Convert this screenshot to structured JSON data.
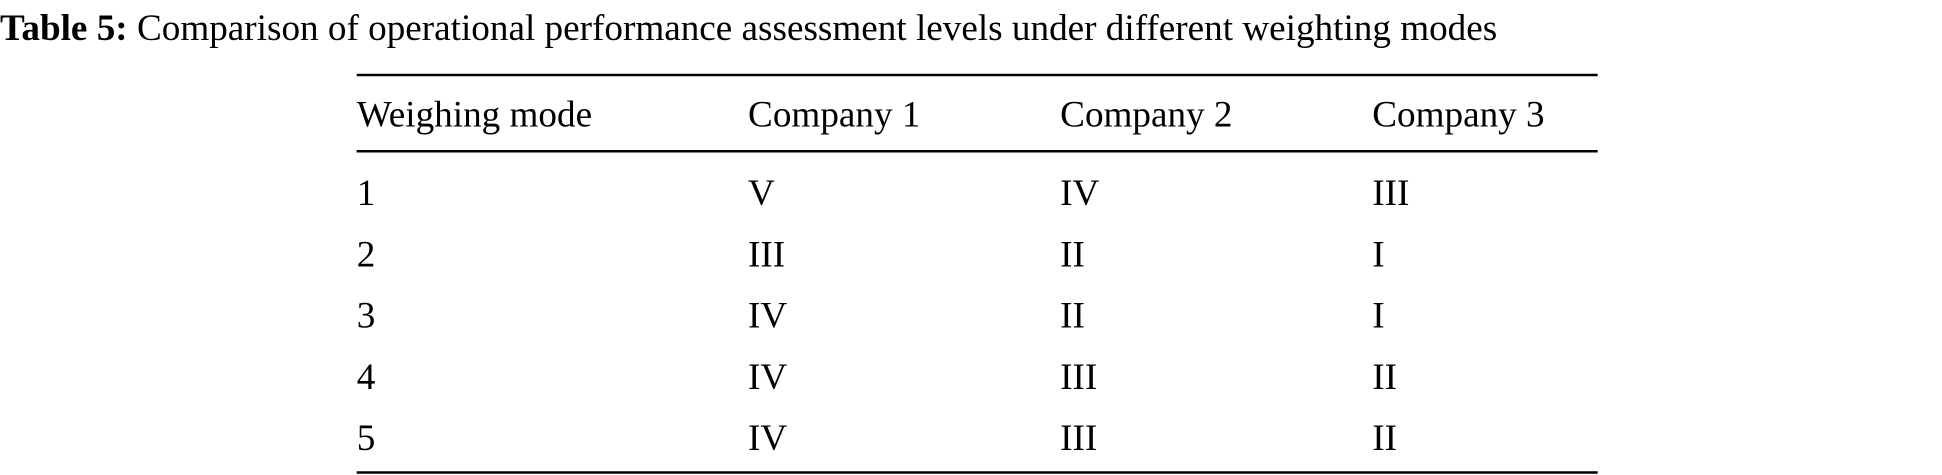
{
  "caption": {
    "label": "Table 5:",
    "text": "Comparison of operational performance assessment levels under different weighting modes"
  },
  "table": {
    "headers": [
      "Weighing mode",
      "Company 1",
      "Company 2",
      "Company 3"
    ],
    "rows": [
      [
        "1",
        "V",
        "IV",
        "III"
      ],
      [
        "2",
        "III",
        "II",
        "I"
      ],
      [
        "3",
        "IV",
        "II",
        "I"
      ],
      [
        "4",
        "IV",
        "III",
        "II"
      ],
      [
        "5",
        "IV",
        "III",
        "II"
      ]
    ]
  }
}
